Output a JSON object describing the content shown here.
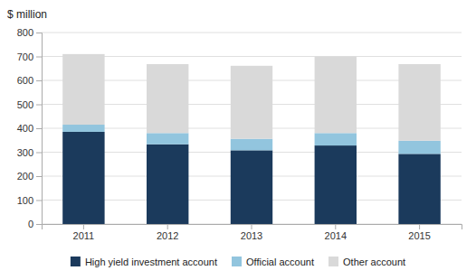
{
  "chart_data": {
    "type": "bar",
    "stacked": true,
    "categories": [
      "2011",
      "2012",
      "2013",
      "2014",
      "2015"
    ],
    "series": [
      {
        "name": "High yield investment account",
        "color": "#1b3a5c",
        "values": [
          385,
          333,
          308,
          328,
          293
        ]
      },
      {
        "name": "Official account",
        "color": "#92c5de",
        "values": [
          30,
          47,
          48,
          52,
          55
        ]
      },
      {
        "name": "Other account",
        "color": "#d9d9d9",
        "values": [
          295,
          288,
          305,
          320,
          320
        ]
      }
    ],
    "ylabel": "$ million",
    "ylim": [
      0,
      800
    ],
    "yticks": [
      0,
      100,
      200,
      300,
      400,
      500,
      600,
      700,
      800
    ],
    "grid": true,
    "legend": "bottom"
  }
}
